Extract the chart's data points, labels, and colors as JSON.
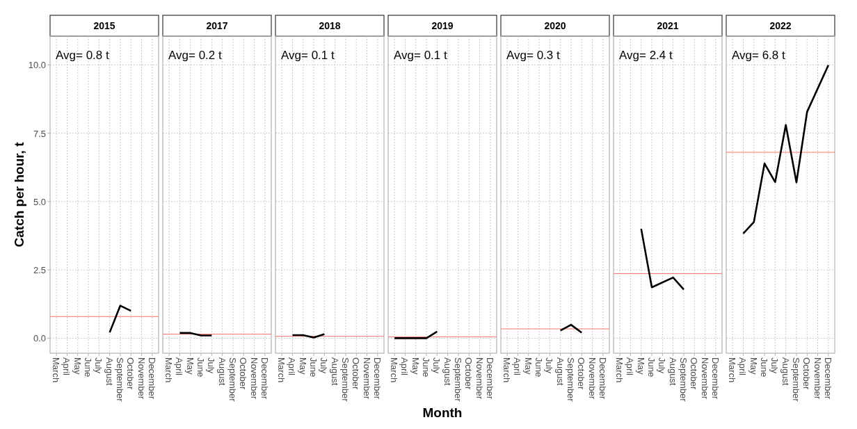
{
  "chart_data": [
    {
      "type": "line",
      "title": "2015",
      "ylabel": "Catch per hour, t",
      "annotations": [
        "Avg= 0.8 t"
      ],
      "categories": [
        "March",
        "April",
        "May",
        "June",
        "July",
        "August",
        "September",
        "October",
        "November",
        "December"
      ],
      "series": [
        {
          "color": "#000000",
          "values": [
            null,
            null,
            null,
            null,
            null,
            0.21,
            1.19,
            1.0,
            null,
            null
          ]
        }
      ],
      "ylim": [
        -0.55,
        11.05
      ],
      "yticks": [
        {
          "value": 0,
          "label": "0.0"
        },
        2.5,
        {
          "value": 5,
          "label": "5.0"
        },
        7.5,
        {
          "value": 10,
          "label": "10.0"
        }
      ],
      "grid": true,
      "ref_lines": [
        {
          "axis": "y",
          "value": 0.79,
          "color": "#f8766d"
        }
      ]
    },
    {
      "type": "line",
      "title": "2017",
      "annotations": [
        "Avg= 0.2 t"
      ],
      "categories": [
        "March",
        "April",
        "May",
        "June",
        "July",
        "August",
        "September",
        "October",
        "November",
        "December"
      ],
      "series": [
        {
          "color": "#000000",
          "values": [
            null,
            0.19,
            0.19,
            0.1,
            0.1,
            null,
            null,
            null,
            null,
            null
          ]
        }
      ],
      "ylim": [
        -0.55,
        11.05
      ],
      "yticks": [
        0,
        2.5,
        5,
        7.5,
        10
      ],
      "grid": true,
      "tick_labels": "x",
      "ref_lines": [
        {
          "axis": "y",
          "value": 0.15,
          "color": "#f8766d"
        }
      ]
    },
    {
      "type": "line",
      "title": "2018",
      "annotations": [
        "Avg= 0.1 t"
      ],
      "categories": [
        "March",
        "April",
        "May",
        "June",
        "July",
        "August",
        "September",
        "October",
        "November",
        "December"
      ],
      "series": [
        {
          "color": "#000000",
          "values": [
            null,
            0.11,
            0.11,
            0.02,
            0.15,
            null,
            null,
            null,
            null,
            null
          ]
        }
      ],
      "ylim": [
        -0.55,
        11.05
      ],
      "yticks": [
        0,
        2.5,
        5,
        7.5,
        10
      ],
      "grid": true,
      "tick_labels": "x",
      "ref_lines": [
        {
          "axis": "y",
          "value": 0.07,
          "color": "#f8766d"
        }
      ]
    },
    {
      "type": "line",
      "title": "2019",
      "xlabel": "Month",
      "annotations": [
        "Avg= 0.1 t"
      ],
      "categories": [
        "March",
        "April",
        "May",
        "June",
        "July",
        "August",
        "September",
        "October",
        "November",
        "December"
      ],
      "series": [
        {
          "color": "#000000",
          "values": [
            0.0,
            0.0,
            0.0,
            0.0,
            0.24,
            null,
            null,
            null,
            null,
            null
          ]
        }
      ],
      "ylim": [
        -0.55,
        11.05
      ],
      "yticks": [
        0,
        2.5,
        5,
        7.5,
        10
      ],
      "grid": true,
      "tick_labels": "x",
      "ref_lines": [
        {
          "axis": "y",
          "value": 0.05,
          "color": "#f8766d"
        }
      ]
    },
    {
      "type": "line",
      "title": "2020",
      "annotations": [
        "Avg= 0.3 t"
      ],
      "categories": [
        "March",
        "April",
        "May",
        "June",
        "July",
        "August",
        "September",
        "October",
        "November",
        "December"
      ],
      "series": [
        {
          "color": "#000000",
          "values": [
            null,
            null,
            null,
            null,
            null,
            0.28,
            0.49,
            0.2,
            null,
            null
          ]
        }
      ],
      "ylim": [
        -0.55,
        11.05
      ],
      "yticks": [
        0,
        2.5,
        5,
        7.5,
        10
      ],
      "grid": true,
      "tick_labels": "x",
      "ref_lines": [
        {
          "axis": "y",
          "value": 0.34,
          "color": "#f8766d"
        }
      ]
    },
    {
      "type": "line",
      "title": "2021",
      "annotations": [
        "Avg= 2.4 t"
      ],
      "categories": [
        "March",
        "April",
        "May",
        "June",
        "July",
        "August",
        "September",
        "October",
        "November",
        "December"
      ],
      "series": [
        {
          "color": "#000000",
          "values": [
            null,
            null,
            4.0,
            1.86,
            null,
            2.22,
            1.78,
            null,
            null,
            null
          ]
        }
      ],
      "ylim": [
        -0.55,
        11.05
      ],
      "yticks": [
        0,
        2.5,
        5,
        7.5,
        10
      ],
      "grid": true,
      "tick_labels": "x",
      "ref_lines": [
        {
          "axis": "y",
          "value": 2.36,
          "color": "#f8766d"
        }
      ]
    },
    {
      "type": "line",
      "title": "2022",
      "annotations": [
        "Avg= 6.8 t"
      ],
      "categories": [
        "March",
        "April",
        "May",
        "June",
        "July",
        "August",
        "September",
        "October",
        "November",
        "December"
      ],
      "series": [
        {
          "color": "#000000",
          "values": [
            null,
            3.83,
            4.25,
            6.39,
            5.71,
            7.8,
            5.7,
            8.28,
            null,
            9.99
          ]
        }
      ],
      "ylim": [
        -0.55,
        11.05
      ],
      "yticks": [
        0,
        2.5,
        5,
        7.5,
        10
      ],
      "grid": true,
      "tick_labels": "x",
      "ref_lines": [
        {
          "axis": "y",
          "value": 6.8,
          "color": "#f8766d"
        }
      ]
    }
  ]
}
